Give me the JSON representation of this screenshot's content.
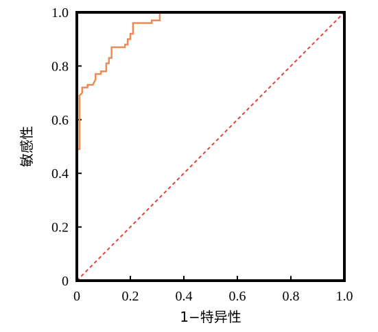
{
  "chart_data": {
    "type": "line",
    "title": "",
    "xlabel": "1−特异性",
    "ylabel": "敏感性",
    "xlim": [
      0,
      1
    ],
    "ylim": [
      0,
      1
    ],
    "grid": false,
    "legend": "none",
    "x_ticks": [
      {
        "value": 0,
        "label": "0"
      },
      {
        "value": 0.2,
        "label": "0.2"
      },
      {
        "value": 0.4,
        "label": "0.4"
      },
      {
        "value": 0.6,
        "label": "0.6"
      },
      {
        "value": 0.8,
        "label": "0.8"
      },
      {
        "value": 1.0,
        "label": "1.0"
      }
    ],
    "y_ticks": [
      {
        "value": 0,
        "label": "0"
      },
      {
        "value": 0.2,
        "label": "0.2"
      },
      {
        "value": 0.4,
        "label": "0.4"
      },
      {
        "value": 0.6,
        "label": "0.6"
      },
      {
        "value": 0.8,
        "label": "0.8"
      },
      {
        "value": 1.0,
        "label": "1.0"
      }
    ],
    "series": [
      {
        "style": "solid",
        "color": "#ee8a55",
        "x": [
          0,
          0,
          0.01,
          0.01,
          0.02,
          0.02,
          0.04,
          0.04,
          0.05,
          0.06,
          0.07,
          0.07,
          0.09,
          0.09,
          0.1,
          0.11,
          0.11,
          0.12,
          0.12,
          0.13,
          0.13,
          0.18,
          0.18,
          0.19,
          0.19,
          0.2,
          0.2,
          0.21,
          0.21,
          0.28,
          0.28,
          0.31,
          0.31,
          1.0
        ],
        "y": [
          0,
          0.49,
          0.49,
          0.69,
          0.7,
          0.72,
          0.72,
          0.73,
          0.73,
          0.73,
          0.75,
          0.77,
          0.77,
          0.78,
          0.78,
          0.78,
          0.81,
          0.81,
          0.83,
          0.83,
          0.87,
          0.87,
          0.88,
          0.88,
          0.9,
          0.9,
          0.92,
          0.92,
          0.96,
          0.96,
          0.97,
          0.97,
          1.0,
          1.0
        ]
      },
      {
        "style": "dashed",
        "color": "#e8403a",
        "x": [
          0,
          1
        ],
        "y": [
          0,
          1
        ]
      }
    ]
  }
}
